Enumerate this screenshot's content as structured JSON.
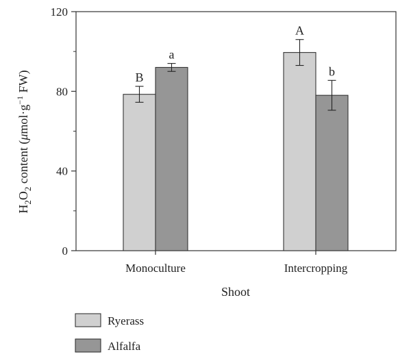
{
  "chart_data": {
    "type": "bar",
    "categories": [
      "Monoculture",
      "Intercropping"
    ],
    "series": [
      {
        "name": "Ryerass",
        "color": "#d0d0d0",
        "values": [
          78.5,
          99.5
        ],
        "errors": [
          4,
          6.5
        ],
        "significance": [
          "B",
          "A"
        ]
      },
      {
        "name": "Alfalfa",
        "color": "#969696",
        "values": [
          92,
          78
        ],
        "errors": [
          2,
          7.5
        ],
        "significance": [
          "a",
          "b"
        ]
      }
    ],
    "xlabel": "Shoot",
    "ylabel": {
      "main": "H",
      "sub1": "2",
      "mid": "O",
      "sub2": "2",
      "rest": " content (",
      "mu": "μ",
      "unit": "mol·g",
      "sup": "−1",
      "end": " FW)"
    },
    "ylim": [
      0,
      120
    ],
    "yticks": [
      0,
      40,
      80,
      120
    ],
    "grid": false,
    "legend_position": "bottom-left"
  }
}
